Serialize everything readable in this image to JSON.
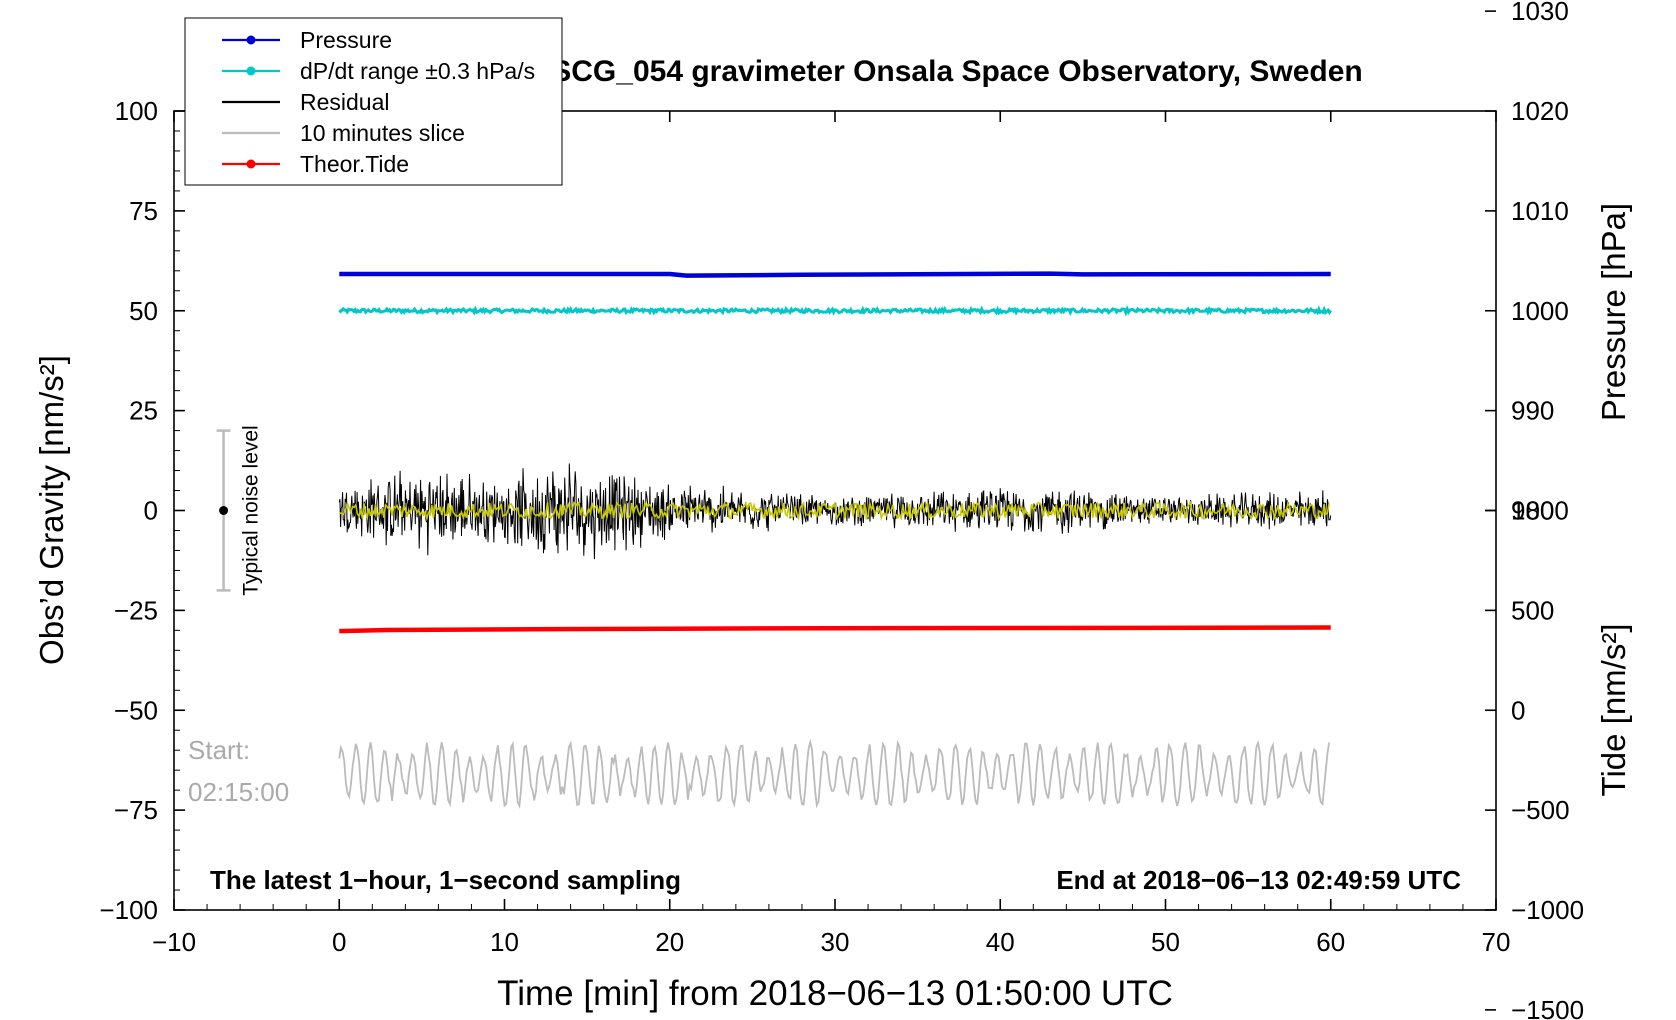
{
  "chart_data": {
    "type": "line",
    "title": "SCG_054 gravimeter Onsala Space Observatory, Sweden",
    "xlabel": "Time [min] from 2018−06−13 01:50:00 UTC",
    "ylabel_left": "Obs’d Gravity [nm/s²]",
    "ylabel_right_top": "Pressure [hPa]",
    "ylabel_right_bottom": "Tide [nm/s²]",
    "xlim": [
      -10,
      70
    ],
    "ylim": [
      -100,
      100
    ],
    "x_ticks": [
      {
        "value": -10,
        "label": "−10"
      },
      {
        "value": 0,
        "label": "0"
      },
      {
        "value": 10,
        "label": "10"
      },
      {
        "value": 20,
        "label": "20"
      },
      {
        "value": 30,
        "label": "30"
      },
      {
        "value": 40,
        "label": "40"
      },
      {
        "value": 50,
        "label": "50"
      },
      {
        "value": 60,
        "label": "60"
      },
      {
        "value": 70,
        "label": "70"
      }
    ],
    "y_ticks_left": [
      {
        "value": 100,
        "label": "100"
      },
      {
        "value": 75,
        "label": "75"
      },
      {
        "value": 50,
        "label": "50"
      },
      {
        "value": 25,
        "label": "25"
      },
      {
        "value": 0,
        "label": "0"
      },
      {
        "value": -25,
        "label": "−25"
      },
      {
        "value": -50,
        "label": "−50"
      },
      {
        "value": -75,
        "label": "−75"
      },
      {
        "value": -100,
        "label": "−100"
      }
    ],
    "pressure_axis": {
      "ticks": [
        {
          "value": 1030,
          "label": "1030"
        },
        {
          "value": 1020,
          "label": "1020"
        },
        {
          "value": 1010,
          "label": "1010"
        },
        {
          "value": 1000,
          "label": "1000"
        },
        {
          "value": 990,
          "label": "990"
        },
        {
          "value": 980,
          "label": "980"
        }
      ],
      "gravity_at_1000": 50,
      "gravity_per_unit": 2.5
    },
    "tide_axis": {
      "ticks": [
        {
          "value": 1000,
          "label": "1000"
        },
        {
          "value": 500,
          "label": "500"
        },
        {
          "value": 0,
          "label": "0"
        },
        {
          "value": -500,
          "label": "−500"
        },
        {
          "value": -1000,
          "label": "−1000"
        },
        {
          "value": -1500,
          "label": "−1500"
        }
      ],
      "gravity_at_0": -50,
      "gravity_per_unit": 0.05
    },
    "series": [
      {
        "name": "Pressure",
        "color": "#0000dd",
        "x": [
          0,
          20,
          21,
          28,
          43,
          45,
          60
        ],
        "y": [
          59.2,
          59.2,
          58.8,
          59.0,
          59.3,
          59.1,
          59.2
        ]
      },
      {
        "name": "dP/dt range ±0.3 hPa/s",
        "color": "#00c8c8",
        "x": [
          0,
          60
        ],
        "y": [
          50,
          50
        ]
      },
      {
        "name": "Residual",
        "color": "#000000",
        "x": [
          0,
          5,
          10,
          13.5,
          20,
          30,
          43,
          50,
          60
        ],
        "amplitude": [
          8,
          12,
          9,
          15,
          8,
          4,
          7,
          4,
          6
        ]
      },
      {
        "name": "10 minutes slice",
        "color": "#bbbbbb",
        "start_label": "Start:",
        "start_time": "02:15:00",
        "x": [
          0,
          60
        ],
        "center": -66,
        "amplitude": 8
      },
      {
        "name": "Theor.Tide",
        "color": "#ff0000",
        "x": [
          0,
          3,
          13,
          26,
          60
        ],
        "y": [
          -30.2,
          -29.9,
          -29.7,
          -29.5,
          -29.3
        ]
      }
    ],
    "overlay": {
      "name": "filtered residual",
      "color": "#c8c800"
    },
    "noise_bar": {
      "label": "Typical noise level",
      "x": -7,
      "center": 0,
      "upper": 20,
      "lower": -20
    },
    "annotations": {
      "bottom_left": "The latest 1−hour, 1−second sampling",
      "bottom_right": "End at 2018−06−13 02:49:59 UTC"
    },
    "legend": {
      "placement": "top-left",
      "entries": [
        {
          "label": "Pressure",
          "color": "#0000dd",
          "marker": true
        },
        {
          "label": "dP/dt range ±0.3 hPa/s",
          "color": "#00c8c8",
          "marker": true
        },
        {
          "label": "Residual",
          "color": "#000000",
          "marker": false
        },
        {
          "label": "10 minutes slice",
          "color": "#bbbbbb",
          "marker": false
        },
        {
          "label": "Theor.Tide",
          "color": "#ff0000",
          "marker": true
        }
      ]
    }
  }
}
